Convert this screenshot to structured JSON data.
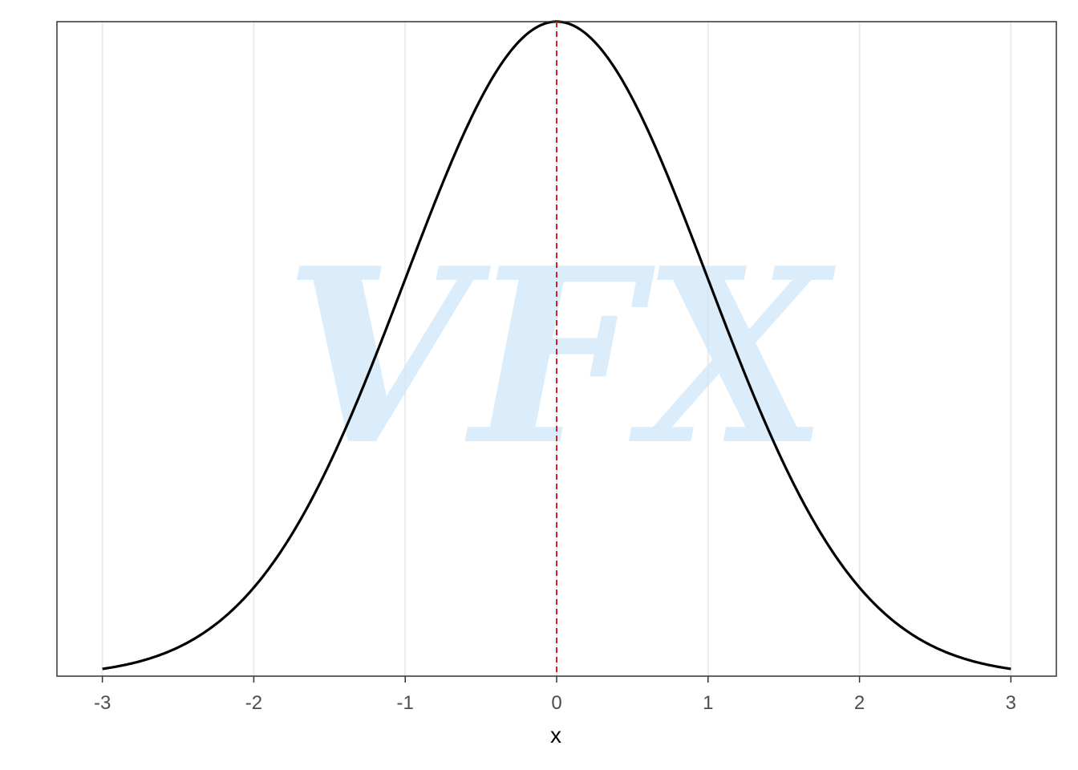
{
  "chart_data": {
    "type": "line",
    "title": "",
    "xlabel": "x",
    "ylabel": "",
    "xlim": [
      -3.3,
      3.3
    ],
    "ylim": [
      0,
      0.3989
    ],
    "x_ticks": [
      -3,
      -2,
      -1,
      0,
      1,
      2,
      3
    ],
    "x_tick_labels": [
      "-3",
      "-2",
      "-1",
      "0",
      "1",
      "2",
      "3"
    ],
    "y_ticks_shown": false,
    "grid": "vertical major gridlines",
    "series": [
      {
        "curve": "standard normal density",
        "mean": 0,
        "sd": 1,
        "x_range": [
          -3,
          3
        ],
        "color": "#000000"
      }
    ],
    "reference_line": {
      "orientation": "vertical",
      "x": 0,
      "style": "dashed",
      "color": "#e41a1c"
    },
    "watermark": "VFX"
  },
  "colors": {
    "grid": "#ebebeb",
    "panel_border": "#333333",
    "curve": "#000000",
    "reference": "#e41a1c",
    "watermark": "#cfe8f9"
  }
}
